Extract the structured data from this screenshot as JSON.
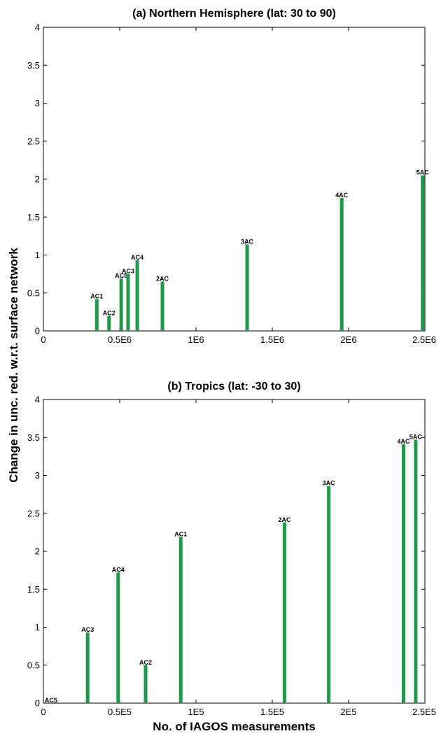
{
  "figure": {
    "shared_ylabel": "Change in unc. red. w.r.t. surface network",
    "shared_xlabel": "No. of IAGOS  measurements",
    "bar_color": "#1f9a4a"
  },
  "chart_data": [
    {
      "type": "bar",
      "title": "(a) Northern Hemisphere (lat: 30 to 90)",
      "xlim": [
        0,
        2500000
      ],
      "ylim": [
        0,
        4
      ],
      "xticks": [
        0,
        500000,
        1000000,
        1500000,
        2000000,
        2500000
      ],
      "xtick_labels": [
        "0",
        "0.5E6",
        "1E6",
        "1.5E6",
        "2E6",
        "2.5E6"
      ],
      "yticks": [
        0,
        0.5,
        1,
        1.5,
        2,
        2.5,
        3,
        3.5,
        4
      ],
      "ytick_labels": [
        "0",
        "0.5",
        "1",
        "1.5",
        "2",
        "2.5",
        "3",
        "3.5",
        "4"
      ],
      "grid": false,
      "points": [
        {
          "label": "AC1",
          "x": 350000,
          "y": 0.42
        },
        {
          "label": "AC2",
          "x": 430000,
          "y": 0.2
        },
        {
          "label": "AC5",
          "x": 510000,
          "y": 0.69
        },
        {
          "label": "AC3",
          "x": 555000,
          "y": 0.75
        },
        {
          "label": "AC4",
          "x": 615000,
          "y": 0.93
        },
        {
          "label": "2AC",
          "x": 780000,
          "y": 0.65
        },
        {
          "label": "3AC",
          "x": 1335000,
          "y": 1.14
        },
        {
          "label": "4AC",
          "x": 1955000,
          "y": 1.75
        },
        {
          "label": "5AC",
          "x": 2485000,
          "y": 2.05
        }
      ]
    },
    {
      "type": "bar",
      "title": "(b) Tropics (lat: -30 to 30)",
      "xlim": [
        0,
        250000
      ],
      "ylim": [
        0,
        4
      ],
      "xticks": [
        0,
        50000,
        100000,
        150000,
        200000,
        250000
      ],
      "xtick_labels": [
        "0",
        "0.5E5",
        "1E5",
        "1.5E5",
        "2E5",
        "2.5E5"
      ],
      "yticks": [
        0,
        0.5,
        1,
        1.5,
        2,
        2.5,
        3,
        3.5,
        4
      ],
      "ytick_labels": [
        "0",
        "0.5",
        "1",
        "1.5",
        "2",
        "2.5",
        "3",
        "3.5",
        "4"
      ],
      "grid": false,
      "points": [
        {
          "label": "AC5",
          "x": 5000,
          "y": 0.0
        },
        {
          "label": "AC3",
          "x": 29000,
          "y": 0.93
        },
        {
          "label": "AC4",
          "x": 49000,
          "y": 1.72
        },
        {
          "label": "AC2",
          "x": 67000,
          "y": 0.5
        },
        {
          "label": "AC1",
          "x": 90000,
          "y": 2.19
        },
        {
          "label": "2AC",
          "x": 158000,
          "y": 2.38
        },
        {
          "label": "3AC",
          "x": 187000,
          "y": 2.86
        },
        {
          "label": "4AC",
          "x": 236000,
          "y": 3.41
        },
        {
          "label": "5AC",
          "x": 244000,
          "y": 3.47
        }
      ]
    }
  ]
}
